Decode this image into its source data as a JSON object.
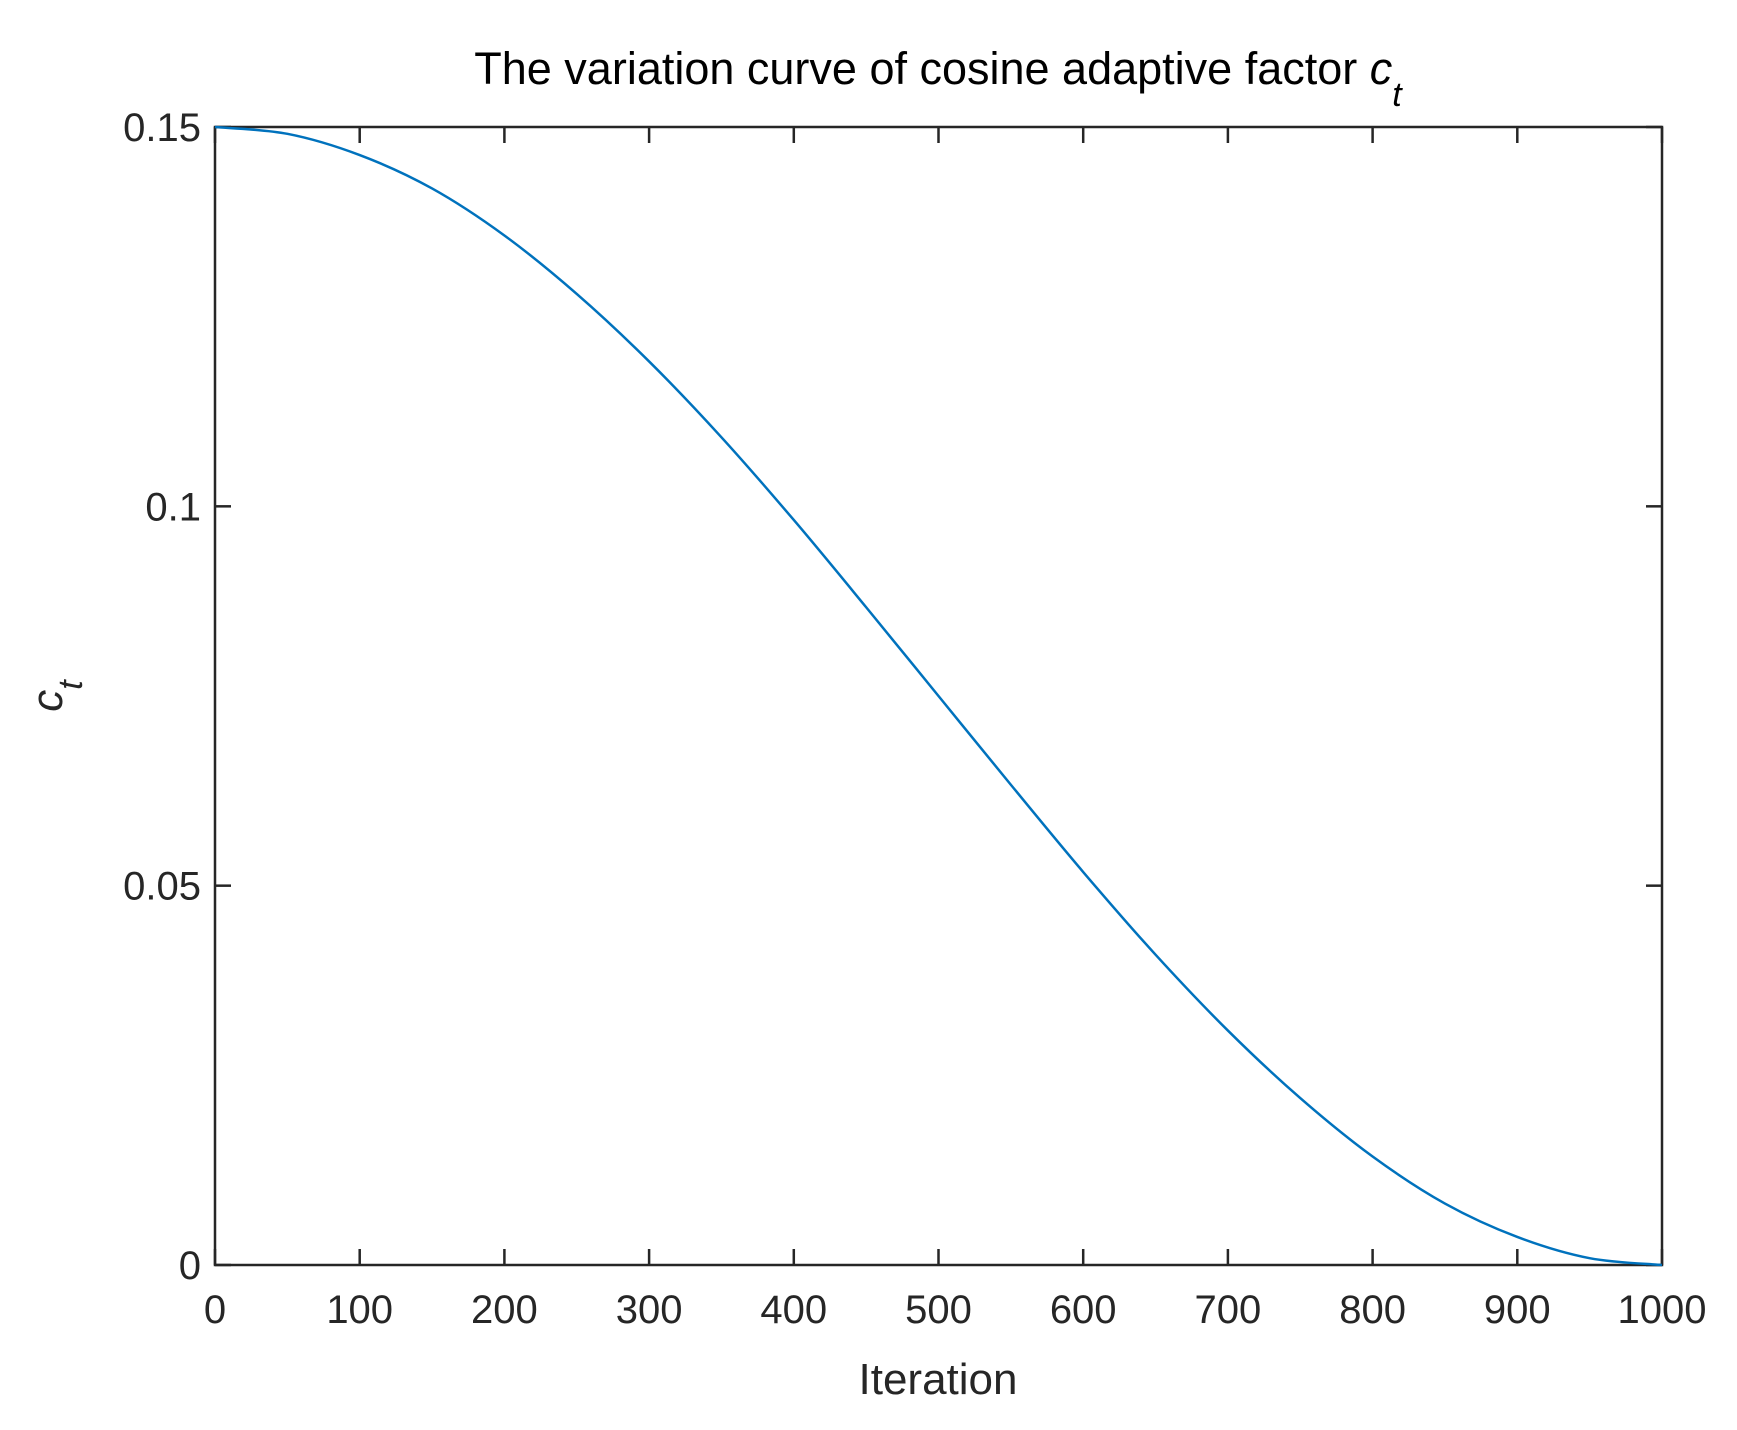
{
  "chart_data": {
    "type": "line",
    "title": "The variation curve of cosine adaptive factor",
    "title_symbol": "c",
    "title_symbol_sub": "t",
    "xlabel": "Iteration",
    "ylabel_symbol": "c",
    "ylabel_symbol_sub": "t",
    "xlim": [
      0,
      1000
    ],
    "ylim": [
      0,
      0.15
    ],
    "x_ticks": [
      0,
      100,
      200,
      300,
      400,
      500,
      600,
      700,
      800,
      900,
      1000
    ],
    "x_tick_labels": [
      "0",
      "100",
      "200",
      "300",
      "400",
      "500",
      "600",
      "700",
      "800",
      "900",
      "1000"
    ],
    "y_ticks": [
      0,
      0.05,
      0.1,
      0.15
    ],
    "y_tick_labels": [
      "0",
      "0.05",
      "0.1",
      "0.15"
    ],
    "grid": false,
    "series": [
      {
        "color": "#0072BD",
        "x": [
          0,
          50,
          100,
          150,
          200,
          250,
          300,
          350,
          400,
          450,
          500,
          550,
          600,
          650,
          700,
          750,
          800,
          850,
          900,
          950,
          1000
        ],
        "y": [
          0.15,
          0.1491,
          0.1463,
          0.1419,
          0.1357,
          0.128,
          0.1191,
          0.1091,
          0.0982,
          0.0867,
          0.075,
          0.0633,
          0.0518,
          0.0409,
          0.0309,
          0.022,
          0.0143,
          0.0081,
          0.0037,
          0.0009,
          0
        ]
      }
    ]
  }
}
